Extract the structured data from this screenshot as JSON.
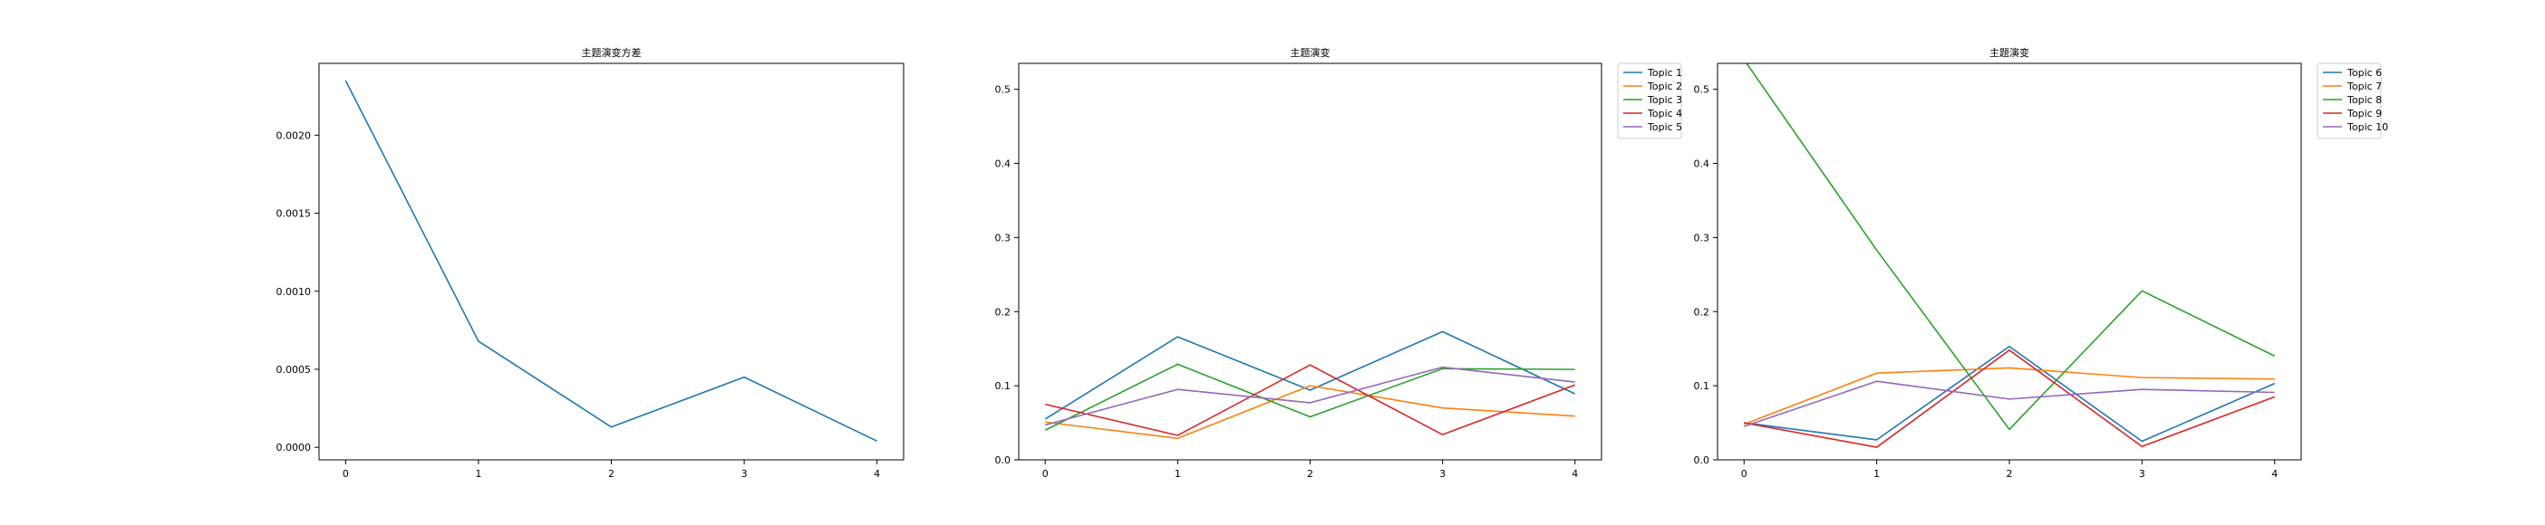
{
  "chart_data": [
    {
      "type": "line",
      "title": "主题演变方差",
      "xlabel": "",
      "ylabel": "",
      "x": [
        0,
        1,
        2,
        3,
        4
      ],
      "xticks": [
        "0",
        "1",
        "2",
        "3",
        "4"
      ],
      "xlim": [
        -0.2,
        4.2
      ],
      "ylim": [
        -8e-05,
        0.00246
      ],
      "yticks": [
        "0.0000",
        "0.0005",
        "0.0010",
        "0.0015",
        "0.0020"
      ],
      "legend": "none",
      "grid": false,
      "series": [
        {
          "color": "#1f77b4",
          "values": [
            0.00235,
            0.00068,
            0.00013,
            0.00045,
            4e-05
          ]
        }
      ]
    },
    {
      "type": "line",
      "title": "主题演变",
      "xlabel": "",
      "ylabel": "",
      "x": [
        0,
        1,
        2,
        3,
        4
      ],
      "xticks": [
        "0",
        "1",
        "2",
        "3",
        "4"
      ],
      "xlim": [
        -0.2,
        4.2
      ],
      "ylim": [
        0,
        0.535
      ],
      "yticks": [
        "0.0",
        "0.1",
        "0.2",
        "0.3",
        "0.4",
        "0.5"
      ],
      "legend": "outside-right-top",
      "grid": false,
      "series": [
        {
          "name": "Topic 1",
          "color": "#1f77b4",
          "values": [
            0.055,
            0.166,
            0.094,
            0.173,
            0.089
          ]
        },
        {
          "name": "Topic 2",
          "color": "#ff7f0e",
          "values": [
            0.051,
            0.029,
            0.1,
            0.07,
            0.059
          ]
        },
        {
          "name": "Topic 3",
          "color": "#2ca02c",
          "values": [
            0.04,
            0.129,
            0.058,
            0.123,
            0.122
          ]
        },
        {
          "name": "Topic 4",
          "color": "#d62728",
          "values": [
            0.075,
            0.033,
            0.128,
            0.034,
            0.101
          ]
        },
        {
          "name": "Topic 5",
          "color": "#9467bd",
          "values": [
            0.047,
            0.095,
            0.077,
            0.125,
            0.105
          ]
        }
      ]
    },
    {
      "type": "line",
      "title": "主题演变",
      "xlabel": "",
      "ylabel": "",
      "x": [
        0,
        1,
        2,
        3,
        4
      ],
      "xticks": [
        "0",
        "1",
        "2",
        "3",
        "4"
      ],
      "xlim": [
        -0.2,
        4.2
      ],
      "ylim": [
        0,
        0.535
      ],
      "yticks": [
        "0.0",
        "0.1",
        "0.2",
        "0.3",
        "0.4",
        "0.5"
      ],
      "legend": "outside-right-top",
      "grid": false,
      "series": [
        {
          "name": "Topic 6",
          "color": "#1f77b4",
          "values": [
            0.05,
            0.027,
            0.153,
            0.025,
            0.103
          ]
        },
        {
          "name": "Topic 7",
          "color": "#ff7f0e",
          "values": [
            0.048,
            0.117,
            0.124,
            0.111,
            0.109
          ]
        },
        {
          "name": "Topic 8",
          "color": "#2ca02c",
          "values": [
            0.54,
            0.283,
            0.041,
            0.228,
            0.14
          ]
        },
        {
          "name": "Topic 9",
          "color": "#d62728",
          "values": [
            0.05,
            0.017,
            0.148,
            0.018,
            0.085
          ]
        },
        {
          "name": "Topic 10",
          "color": "#9467bd",
          "values": [
            0.045,
            0.106,
            0.082,
            0.095,
            0.091
          ]
        }
      ]
    }
  ]
}
